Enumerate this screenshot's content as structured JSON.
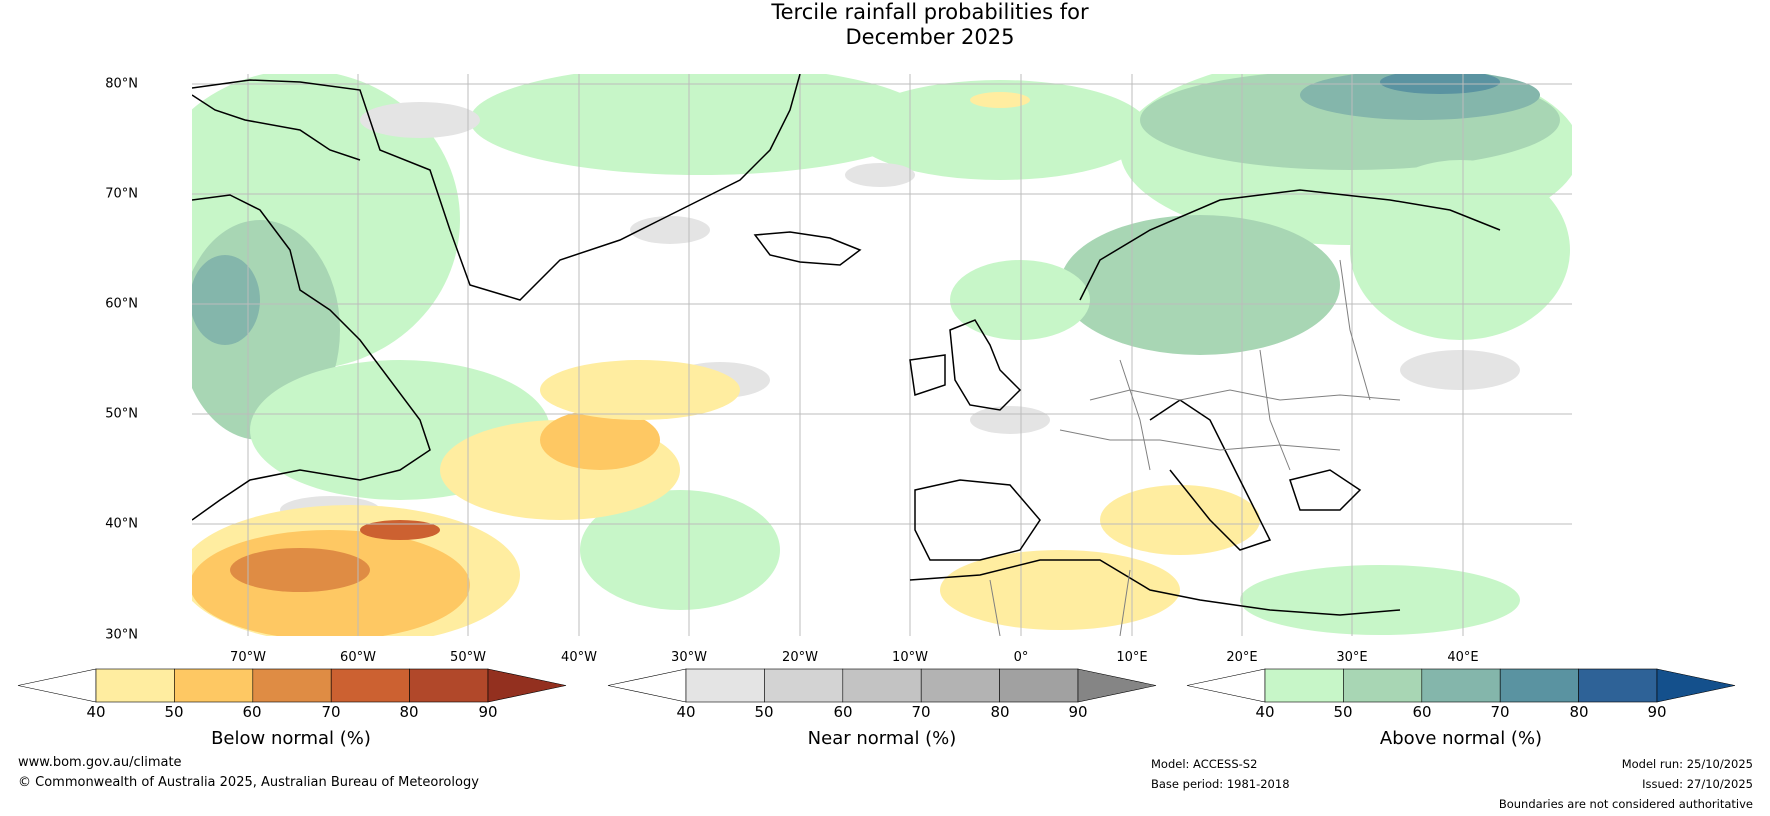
{
  "title": {
    "line1": "Tercile rainfall probabilities for",
    "line2": "December 2025"
  },
  "map": {
    "lat_labels": [
      "80°N",
      "70°N",
      "60°N",
      "50°N",
      "40°N",
      "30°N"
    ],
    "lon_labels": [
      "70°W",
      "60°W",
      "50°W",
      "40°W",
      "30°W",
      "20°W",
      "10°W",
      "0°",
      "10°E",
      "20°E",
      "30°E",
      "40°E"
    ]
  },
  "colorbars": [
    {
      "label": "Below normal (%)",
      "ticks": [
        "40",
        "50",
        "60",
        "70",
        "80",
        "90"
      ],
      "colors": [
        "#ffffff",
        "#ffeda0",
        "#fec863",
        "#df8c44",
        "#cc6131",
        "#b1482a",
        "#93301f"
      ]
    },
    {
      "label": "Near normal (%)",
      "ticks": [
        "40",
        "50",
        "60",
        "70",
        "80",
        "90"
      ],
      "colors": [
        "#ffffff",
        "#e4e4e4",
        "#d3d3d3",
        "#c3c3c3",
        "#b3b3b3",
        "#a1a1a1",
        "#858585"
      ]
    },
    {
      "label": "Above normal (%)",
      "ticks": [
        "40",
        "50",
        "60",
        "70",
        "80",
        "90"
      ],
      "colors": [
        "#ffffff",
        "#c7f6c8",
        "#a8d6b4",
        "#84b6ab",
        "#5a93a1",
        "#2e6297",
        "#14508c"
      ]
    }
  ],
  "colors": {
    "land": "#000000",
    "borders": "#808080",
    "grid": "#bcbcbc"
  },
  "footer": {
    "website": "www.bom.gov.au/climate",
    "copyright": "© Commonwealth of Australia 2025, Australian Bureau of Meteorology",
    "model": "Model: ACCESS-S2",
    "base_period": "Base period: 1981-2018",
    "model_run": "Model run: 25/10/2025",
    "issued": "Issued: 27/10/2025",
    "disclaimer": "Boundaries are not considered authoritative"
  }
}
